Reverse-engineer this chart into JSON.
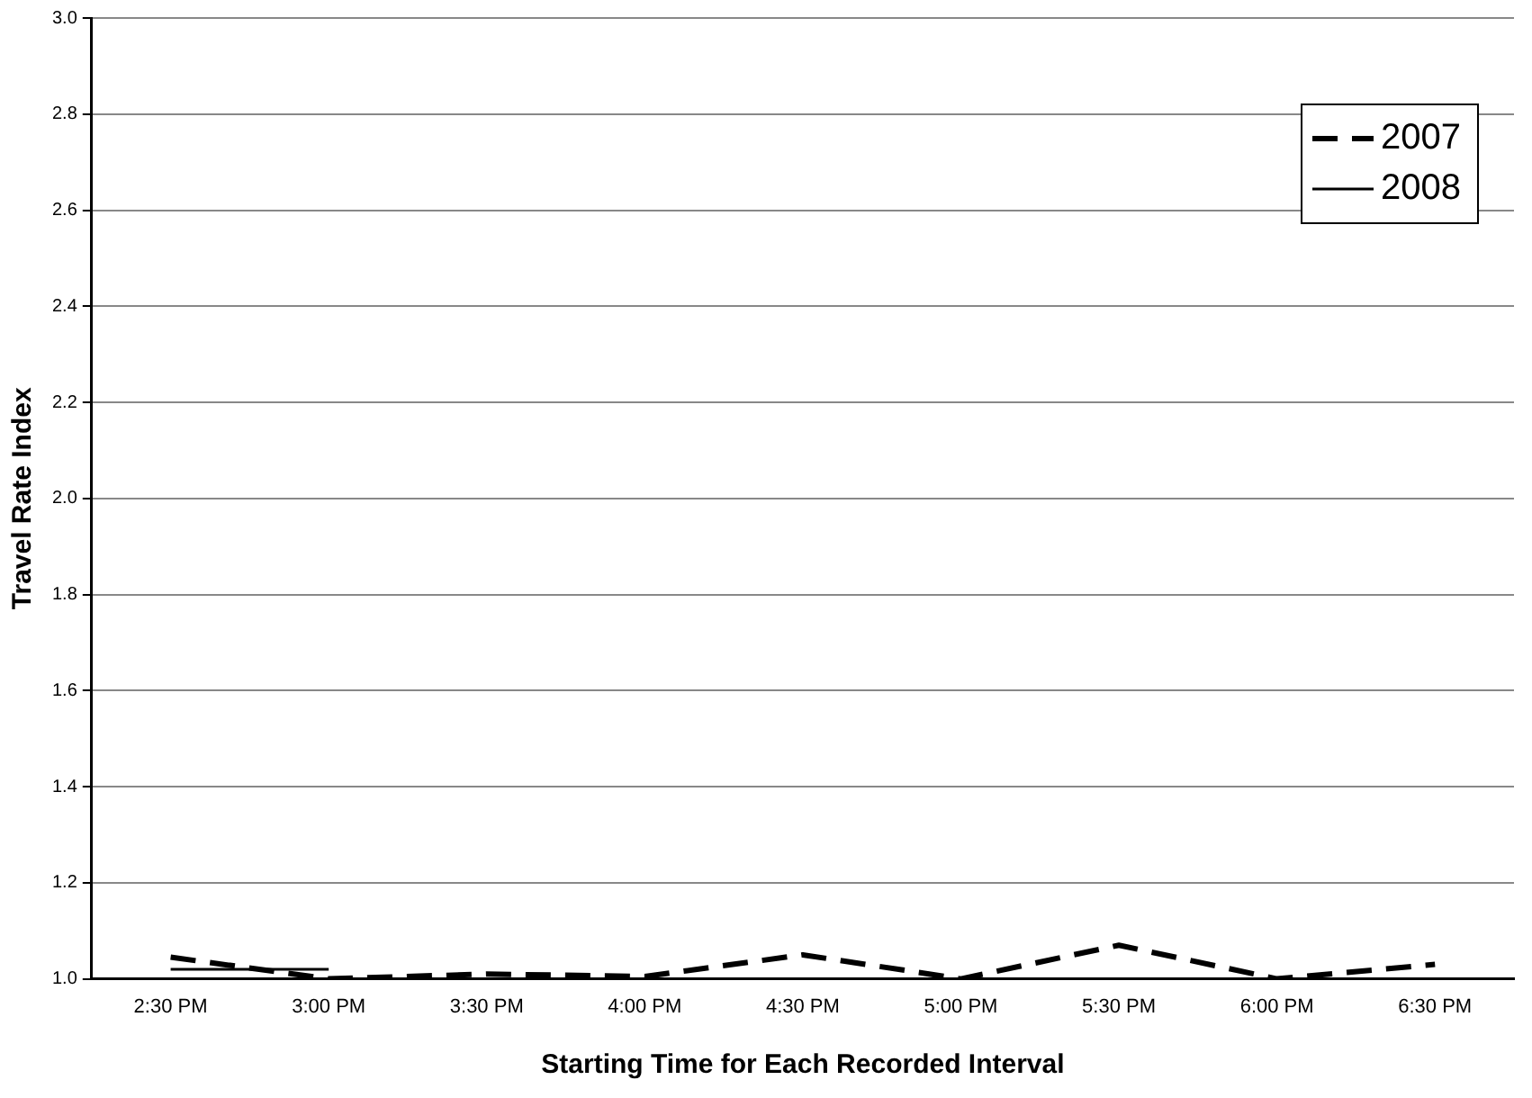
{
  "chart_data": {
    "type": "line",
    "xlabel": "Starting Time for Each Recorded Interval",
    "ylabel": "Travel Rate Index",
    "categories": [
      "2:30 PM",
      "3:00 PM",
      "3:30 PM",
      "4:00 PM",
      "4:30 PM",
      "5:00 PM",
      "5:30 PM",
      "6:00 PM",
      "6:30 PM"
    ],
    "series": [
      {
        "name": "2007",
        "color": "#000000",
        "line_style": "dashed",
        "values": [
          1.045,
          1.0,
          1.01,
          1.005,
          1.05,
          1.0,
          1.07,
          1.0,
          1.03
        ]
      },
      {
        "name": "2008",
        "color": "#000000",
        "line_style": "solid",
        "values": [
          1.02,
          1.02,
          null,
          null,
          null,
          null,
          null,
          null,
          null
        ]
      }
    ],
    "ylim": [
      1.0,
      3.0
    ],
    "yticks": [
      {
        "value": 1.0,
        "label": "1.0"
      },
      {
        "value": 1.2,
        "label": "1.2"
      },
      {
        "value": 1.4,
        "label": "1.4"
      },
      {
        "value": 1.6,
        "label": "1.6"
      },
      {
        "value": 1.8,
        "label": "1.8"
      },
      {
        "value": 2.0,
        "label": "2.0"
      },
      {
        "value": 2.2,
        "label": "2.2"
      },
      {
        "value": 2.4,
        "label": "2.4"
      },
      {
        "value": 2.6,
        "label": "2.6"
      },
      {
        "value": 2.8,
        "label": "2.8"
      },
      {
        "value": 3.0,
        "label": "3.0"
      }
    ],
    "grid": "y",
    "legend": "top right",
    "marker": "none"
  }
}
